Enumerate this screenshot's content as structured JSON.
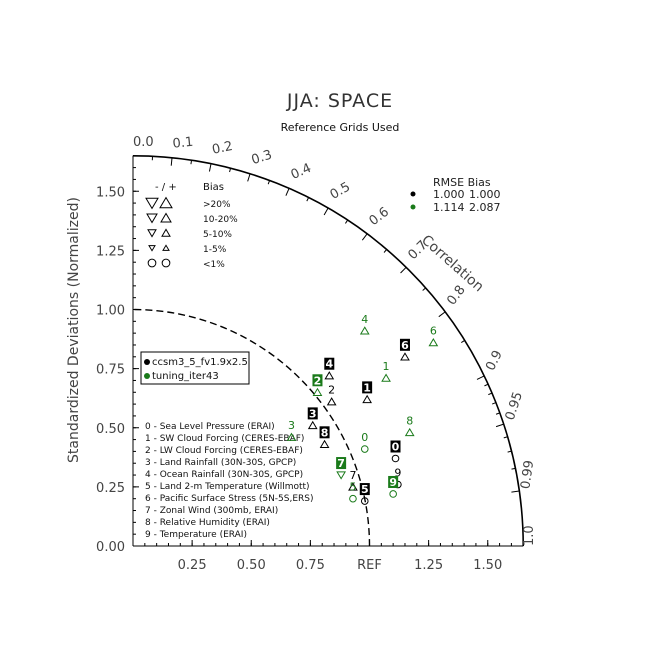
{
  "chart_data": {
    "type": "scatter",
    "title": "JJA: SPACE",
    "subtitle": "Reference Grids Used",
    "ylabel": "Standardized Deviations (Normalized)",
    "correlation_label": "Correlation",
    "ref_label": "REF",
    "x_ticks": [
      "0.25",
      "0.50",
      "0.75",
      "1.25",
      "1.50"
    ],
    "y_ticks": [
      "0.00",
      "0.25",
      "0.50",
      "0.75",
      "1.00",
      "1.25",
      "1.50"
    ],
    "correlation_ticks": [
      "0.0",
      "0.1",
      "0.2",
      "0.3",
      "0.4",
      "0.5",
      "0.6",
      "0.7",
      "0.8",
      "0.9",
      "0.95",
      "0.99",
      "1.0"
    ],
    "bias_legend": {
      "header_sign": "- / +",
      "header_bias": "Bias",
      "rows": [
        ">20%",
        "10-20%",
        "5-10%",
        "1-5%",
        "<1%"
      ]
    },
    "stats_legend": {
      "header": "RMSE  Bias",
      "rows": [
        {
          "rmse": "1.000",
          "bias": "1.000",
          "color": "#000000"
        },
        {
          "rmse": "1.114",
          "bias": "2.087",
          "color": "#1a7a1a"
        }
      ]
    },
    "cases": [
      {
        "name": "ccsm3_5_fv1.9x2.5",
        "color": "#000000"
      },
      {
        "name": "tuning_iter43",
        "color": "#1a7a1a"
      }
    ],
    "variables": [
      "0 - Sea Level Pressure (ERAI)",
      "1 - SW Cloud Forcing (CERES-EBAF)",
      "2 - LW Cloud Forcing (CERES-EBAF)",
      "3 - Land Rainfall (30N-30S, GPCP)",
      "4 - Ocean Rainfall (30N-30S, GPCP)",
      "5 - Land 2-m Temperature (Willmott)",
      "6 - Pacific Surface Stress (5N-5S,ERS)",
      "7 - Zonal Wind (300mb, ERAI)",
      "8 - Relative Humidity (ERAI)",
      "9 - Temperature (ERAI)"
    ],
    "series": [
      {
        "name": "ccsm3_5_fv1.9x2.5",
        "points": [
          {
            "id": "0",
            "x": 1.11,
            "y": 0.37,
            "boxed": true,
            "marker": "circle"
          },
          {
            "id": "1",
            "x": 0.99,
            "y": 0.62,
            "boxed": true,
            "marker": "tri-up"
          },
          {
            "id": "2",
            "x": 0.84,
            "y": 0.61,
            "boxed": false,
            "marker": "tri-up"
          },
          {
            "id": "3",
            "x": 0.76,
            "y": 0.51,
            "boxed": true,
            "marker": "tri-up"
          },
          {
            "id": "4",
            "x": 0.83,
            "y": 0.72,
            "boxed": true,
            "marker": "tri-up"
          },
          {
            "id": "5",
            "x": 0.98,
            "y": 0.19,
            "boxed": true,
            "marker": "circle"
          },
          {
            "id": "6",
            "x": 1.15,
            "y": 0.8,
            "boxed": true,
            "marker": "tri-up"
          },
          {
            "id": "7",
            "x": 0.93,
            "y": 0.25,
            "boxed": false,
            "marker": "tri-up"
          },
          {
            "id": "8",
            "x": 0.81,
            "y": 0.43,
            "boxed": true,
            "marker": "tri-up"
          },
          {
            "id": "9",
            "x": 1.12,
            "y": 0.26,
            "boxed": false,
            "marker": "circle"
          }
        ]
      },
      {
        "name": "tuning_iter43",
        "points": [
          {
            "id": "0",
            "x": 0.98,
            "y": 0.41,
            "boxed": false,
            "marker": "circle"
          },
          {
            "id": "1",
            "x": 1.07,
            "y": 0.71,
            "boxed": false,
            "marker": "tri-up"
          },
          {
            "id": "2",
            "x": 0.78,
            "y": 0.65,
            "boxed": true,
            "marker": "tri-up"
          },
          {
            "id": "3",
            "x": 0.67,
            "y": 0.46,
            "boxed": false,
            "marker": "tri-up"
          },
          {
            "id": "4",
            "x": 0.98,
            "y": 0.91,
            "boxed": false,
            "marker": "tri-up"
          },
          {
            "id": "5",
            "x": 0.93,
            "y": 0.2,
            "boxed": false,
            "marker": "circle"
          },
          {
            "id": "6",
            "x": 1.27,
            "y": 0.86,
            "boxed": false,
            "marker": "tri-up"
          },
          {
            "id": "7",
            "x": 0.88,
            "y": 0.3,
            "boxed": true,
            "marker": "tri-down"
          },
          {
            "id": "8",
            "x": 1.17,
            "y": 0.48,
            "boxed": false,
            "marker": "tri-up"
          },
          {
            "id": "9",
            "x": 1.1,
            "y": 0.22,
            "boxed": true,
            "marker": "circle"
          }
        ]
      }
    ]
  }
}
